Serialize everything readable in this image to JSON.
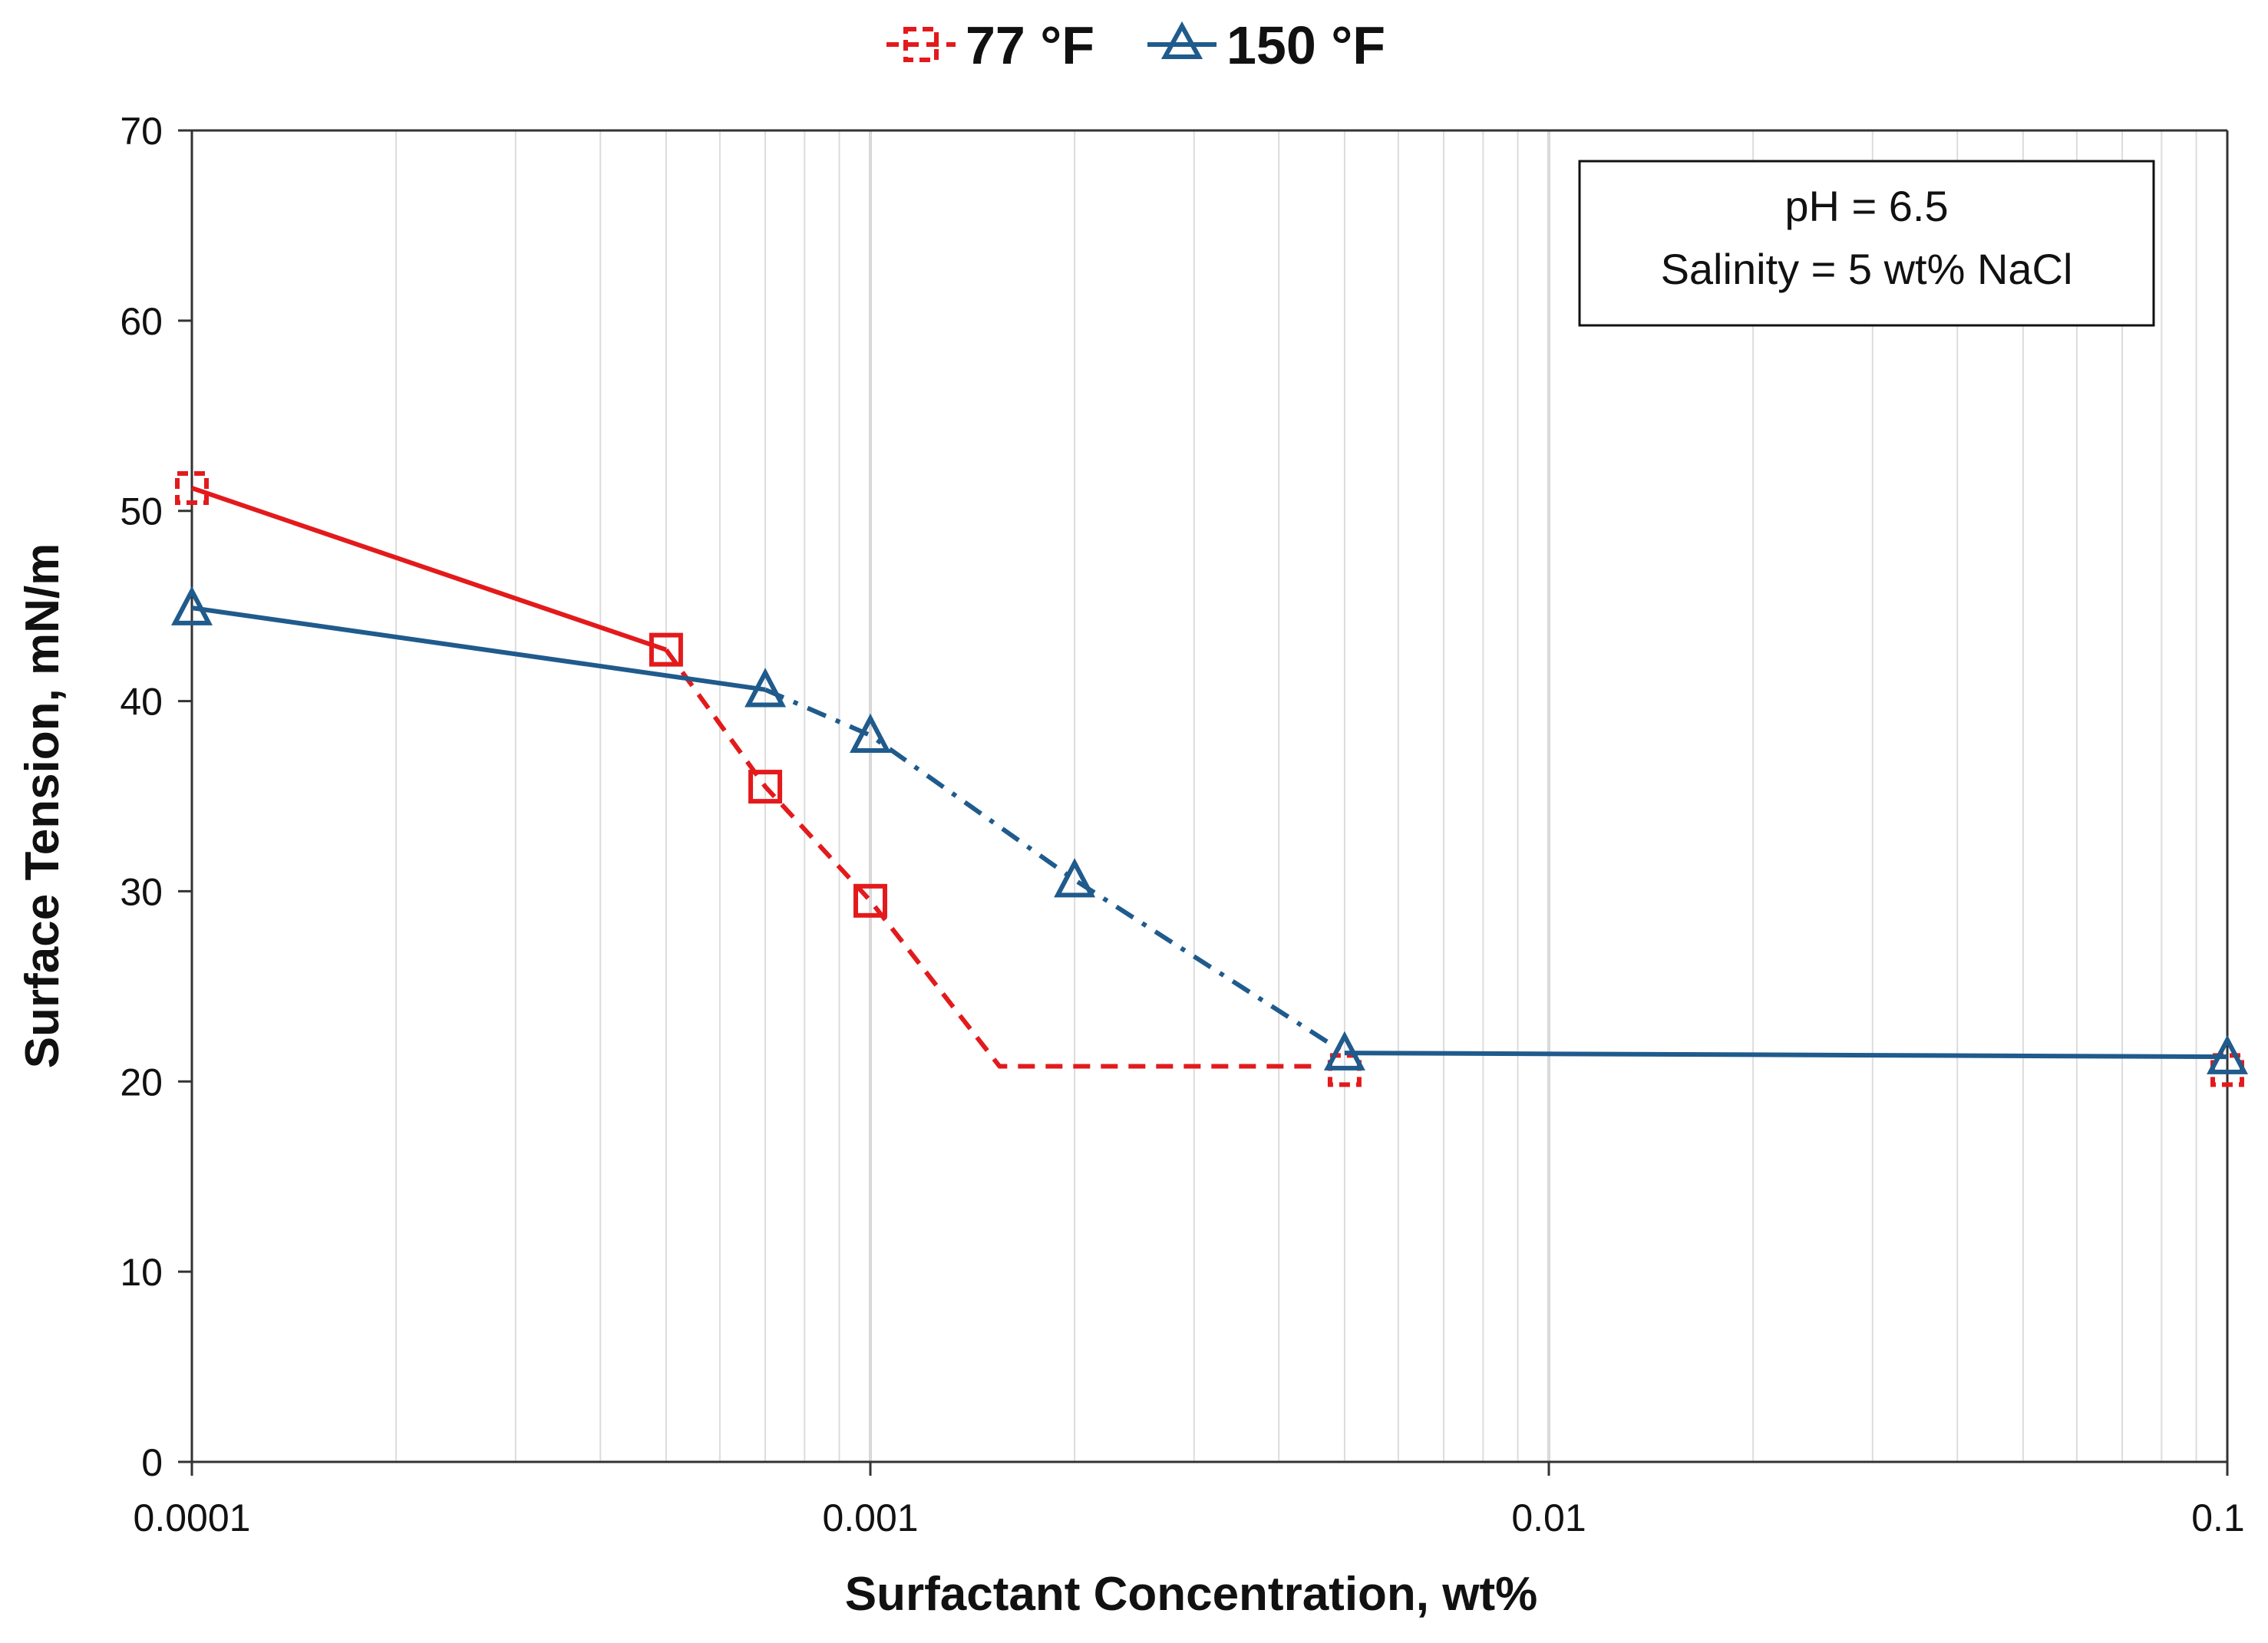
{
  "chart_data": {
    "type": "line",
    "title": "",
    "xlabel": "Surfactant Concentration, wt%",
    "ylabel": "Surface Tension, mN/m",
    "xscale": "log",
    "xlim": [
      0.0001,
      0.1
    ],
    "ylim": [
      0,
      70
    ],
    "x_ticks": [
      {
        "value": 0.0001,
        "label": "0.0001"
      },
      {
        "value": 0.001,
        "label": "0.001"
      },
      {
        "value": 0.01,
        "label": "0.01"
      },
      {
        "value": 0.1,
        "label": "0.1"
      }
    ],
    "y_ticks": [
      {
        "value": 0,
        "label": "0"
      },
      {
        "value": 10,
        "label": "10"
      },
      {
        "value": 20,
        "label": "20"
      },
      {
        "value": 30,
        "label": "30"
      },
      {
        "value": 40,
        "label": "40"
      },
      {
        "value": 50,
        "label": "50"
      },
      {
        "value": 60,
        "label": "60"
      },
      {
        "value": 70,
        "label": "70"
      }
    ],
    "grid": "vertical minor and major log gridlines",
    "legend_position": "top-center",
    "annotation": {
      "line1": "pH = 6.5",
      "line2": "Salinity = 5 wt% NaCl"
    },
    "series": [
      {
        "name": "77 °F",
        "color": "#e31a1c",
        "marker": "square",
        "points": [
          {
            "x": 0.0001,
            "y": 51.2
          },
          {
            "x": 0.0005,
            "y": 42.7
          },
          {
            "x": 0.0007,
            "y": 35.5
          },
          {
            "x": 0.001,
            "y": 29.5
          },
          {
            "x": 0.005,
            "y": 20.6
          },
          {
            "x": 0.1,
            "y": 20.6
          }
        ],
        "segments": [
          {
            "x": [
              0.0001,
              0.0005
            ],
            "y": [
              51.2,
              42.7
            ],
            "style": "solid"
          },
          {
            "x": [
              0.0005,
              0.0007,
              0.001,
              0.00155,
              0.0045
            ],
            "y": [
              42.7,
              35.5,
              29.5,
              20.8,
              20.8
            ],
            "style": "dashed"
          }
        ]
      },
      {
        "name": "150 °F",
        "color": "#1f5b8c",
        "marker": "triangle",
        "points": [
          {
            "x": 0.0001,
            "y": 44.9
          },
          {
            "x": 0.0007,
            "y": 40.6
          },
          {
            "x": 0.001,
            "y": 38.2
          },
          {
            "x": 0.002,
            "y": 30.6
          },
          {
            "x": 0.005,
            "y": 21.5
          },
          {
            "x": 0.1,
            "y": 21.3
          }
        ],
        "segments": [
          {
            "x": [
              0.0001,
              0.0007
            ],
            "y": [
              44.9,
              40.6
            ],
            "style": "solid"
          },
          {
            "x": [
              0.0007,
              0.001,
              0.002,
              0.005
            ],
            "y": [
              40.6,
              38.2,
              30.6,
              21.5
            ],
            "style": "dashdot"
          },
          {
            "x": [
              0.005,
              0.1
            ],
            "y": [
              21.5,
              21.3
            ],
            "style": "solid"
          }
        ]
      }
    ]
  }
}
